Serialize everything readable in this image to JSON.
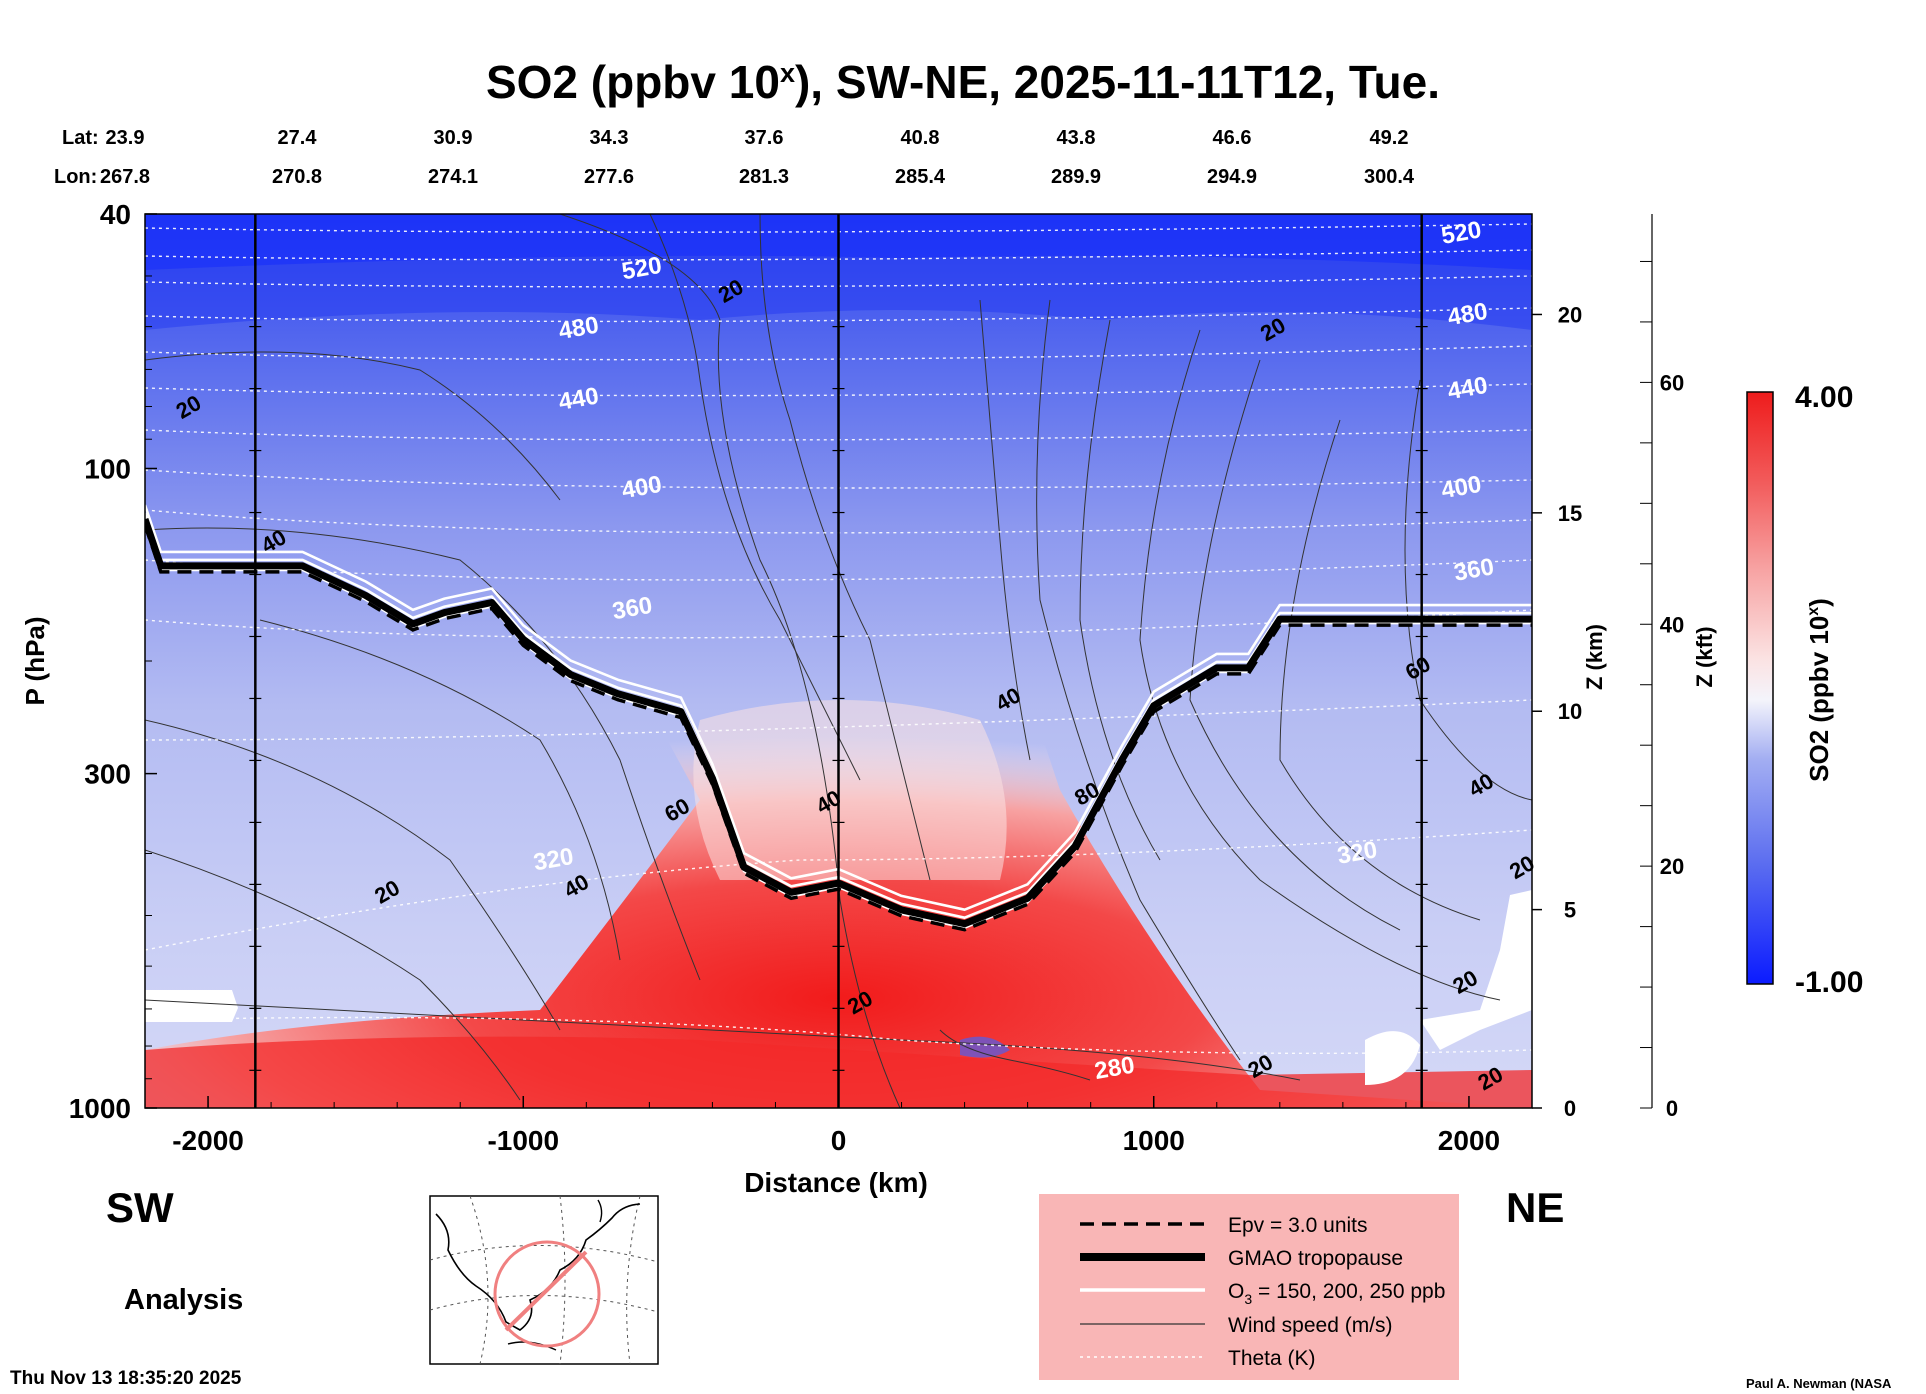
{
  "chart_data": {
    "type": "heatmap",
    "title_main": "SO2 (ppbv 10",
    "title_sup": "x",
    "title_rest": "), SW-NE, 2025-11-11T12, Tue.",
    "xlabel": "Distance (km)",
    "ylabel": "P (hPa)",
    "zlabel": "Z (km)",
    "zkft_label": "Z (kft)",
    "colorbar_label": "SO2 (ppbv 10",
    "colorbar_sup": "x",
    "colorbar_close": ")",
    "colorbar_max_label": "4.00",
    "colorbar_min_label": "-1.00",
    "colorbar_range": [
      -1.0,
      4.0
    ],
    "colorbar_colors": [
      "#0b1bff",
      "#5a6cf0",
      "#a3aef2",
      "#dfe3fb",
      "#fbe2e2",
      "#f7a3a3",
      "#f25a5a",
      "#ee1c1c"
    ],
    "xlim": [
      -2200,
      2200
    ],
    "x_ticks": [
      -2000,
      -1000,
      0,
      1000,
      2000
    ],
    "x_tick_labels": [
      "-2000",
      "-1000",
      "0",
      "1000",
      "2000"
    ],
    "y_pressure_range": [
      40,
      1000
    ],
    "y_ticks": [
      40,
      100,
      300,
      1000
    ],
    "y_tick_labels": [
      "40",
      "100",
      "300",
      "1000"
    ],
    "z_km_ticks": [
      0,
      5,
      10,
      15,
      20
    ],
    "z_km_labels": [
      "0",
      "5",
      "10",
      "15",
      "20"
    ],
    "z_kft_ticks": [
      0,
      20,
      40,
      60
    ],
    "z_kft_labels": [
      "0",
      "20",
      "40",
      "60"
    ],
    "lat_label": "Lat:",
    "lon_label": "Lon:",
    "lat_values": [
      "23.9",
      "27.4",
      "30.9",
      "34.3",
      "37.6",
      "40.8",
      "43.8",
      "46.6",
      "49.2"
    ],
    "lon_values": [
      "267.8",
      "270.8",
      "274.1",
      "277.6",
      "281.3",
      "285.4",
      "289.9",
      "294.9",
      "300.4"
    ],
    "vertical_markers_km": [
      -1850,
      0,
      1850
    ],
    "tropopause_km_hpa": [
      [
        -2200,
        120
      ],
      [
        -2150,
        142
      ],
      [
        -1900,
        142
      ],
      [
        -1700,
        142
      ],
      [
        -1500,
        158
      ],
      [
        -1350,
        175
      ],
      [
        -1250,
        168
      ],
      [
        -1100,
        162
      ],
      [
        -1000,
        185
      ],
      [
        -850,
        210
      ],
      [
        -700,
        225
      ],
      [
        -500,
        240
      ],
      [
        -400,
        305
      ],
      [
        -300,
        420
      ],
      [
        -150,
        460
      ],
      [
        0,
        445
      ],
      [
        200,
        490
      ],
      [
        400,
        515
      ],
      [
        600,
        470
      ],
      [
        750,
        390
      ],
      [
        900,
        285
      ],
      [
        1000,
        235
      ],
      [
        1200,
        205
      ],
      [
        1300,
        205
      ],
      [
        1400,
        172
      ],
      [
        1600,
        172
      ],
      [
        1800,
        172
      ],
      [
        2000,
        172
      ],
      [
        2200,
        172
      ]
    ],
    "theta_labels": [
      {
        "text": "520",
        "x": -620,
        "p": 50
      },
      {
        "text": "480",
        "x": -820,
        "p": 62
      },
      {
        "text": "440",
        "x": -820,
        "p": 80
      },
      {
        "text": "400",
        "x": -620,
        "p": 110
      },
      {
        "text": "360",
        "x": -650,
        "p": 170
      },
      {
        "text": "320",
        "x": -900,
        "p": 420
      },
      {
        "text": "280",
        "x": 880,
        "p": 890
      },
      {
        "text": "520",
        "x": 1980,
        "p": 44
      },
      {
        "text": "480",
        "x": 2000,
        "p": 59
      },
      {
        "text": "440",
        "x": 2000,
        "p": 77
      },
      {
        "text": "400",
        "x": 1980,
        "p": 110
      },
      {
        "text": "360",
        "x": 2020,
        "p": 148
      },
      {
        "text": "320",
        "x": 1650,
        "p": 410
      }
    ],
    "wind_labels": [
      {
        "text": "20",
        "x": -2050,
        "p": 82
      },
      {
        "text": "20",
        "x": -330,
        "p": 54
      },
      {
        "text": "20",
        "x": 1390,
        "p": 62
      },
      {
        "text": "40",
        "x": -1780,
        "p": 133
      },
      {
        "text": "40",
        "x": 550,
        "p": 235
      },
      {
        "text": "60",
        "x": -500,
        "p": 350
      },
      {
        "text": "40",
        "x": -20,
        "p": 340
      },
      {
        "text": "80",
        "x": 800,
        "p": 330
      },
      {
        "text": "40",
        "x": -820,
        "p": 460
      },
      {
        "text": "20",
        "x": -1420,
        "p": 470
      },
      {
        "text": "20",
        "x": 80,
        "p": 700
      },
      {
        "text": "20",
        "x": 1350,
        "p": 880
      },
      {
        "text": "60",
        "x": 1850,
        "p": 210
      },
      {
        "text": "40",
        "x": 2050,
        "p": 320
      },
      {
        "text": "20",
        "x": 2180,
        "p": 430
      },
      {
        "text": "20",
        "x": 2000,
        "p": 650
      },
      {
        "text": "20",
        "x": 2080,
        "p": 920
      }
    ]
  },
  "side_labels": {
    "left": "SW",
    "right": "NE",
    "mode": "Analysis"
  },
  "legend": {
    "items": [
      {
        "key": "epv",
        "label": "Epv = 3.0 units"
      },
      {
        "key": "tropo",
        "label": "GMAO tropopause"
      },
      {
        "key": "o3",
        "label_main": "O",
        "label_sub": "3",
        "label_rest": " = 150, 200, 250 ppb"
      },
      {
        "key": "wind",
        "label": "Wind speed (m/s)"
      },
      {
        "key": "theta",
        "label": "Theta (K)"
      }
    ],
    "bg_color": "#f9b6b6"
  },
  "footer": {
    "timestamp": "Thu Nov 13 18:35:20 2025",
    "credit": "Paul A. Newman (NASA"
  }
}
